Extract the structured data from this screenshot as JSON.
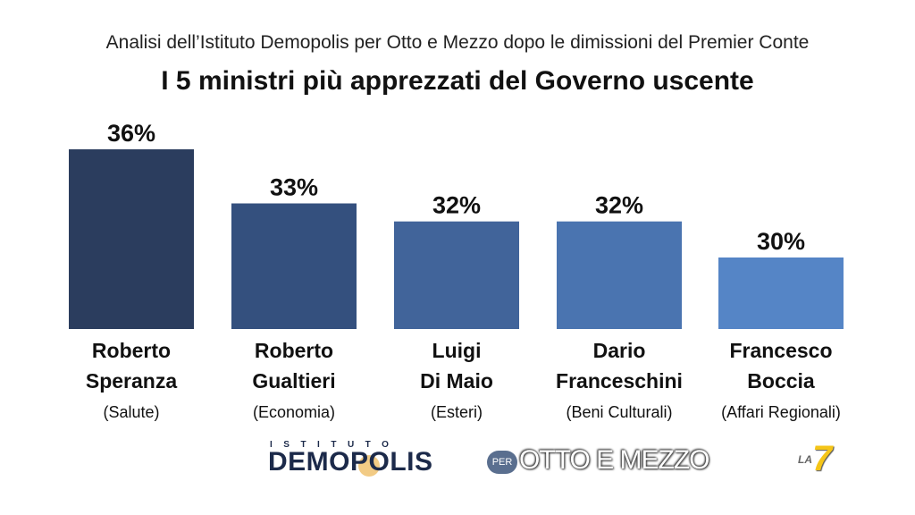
{
  "header": {
    "subtitle": "Analisi dell’Istituto Demopolis per Otto e Mezzo dopo le dimissioni del Premier Conte",
    "title": "I 5 ministri più apprezzati del Governo uscente"
  },
  "chart_data": {
    "type": "bar",
    "title": "I 5 ministri più apprezzati del Governo uscente",
    "categories": [
      {
        "name_line1": "Roberto",
        "name_line2": "Speranza",
        "role": "(Salute)"
      },
      {
        "name_line1": "Roberto",
        "name_line2": "Gualtieri",
        "role": "(Economia)"
      },
      {
        "name_line1": "Luigi",
        "name_line2": "Di Maio",
        "role": "(Esteri)"
      },
      {
        "name_line1": "Dario",
        "name_line2": "Franceschini",
        "role": "(Beni Culturali)"
      },
      {
        "name_line1": "Francesco",
        "name_line2": "Boccia",
        "role": "(Affari Regionali)"
      }
    ],
    "values": [
      36,
      33,
      32,
      32,
      30
    ],
    "value_labels": [
      "36%",
      "33%",
      "32%",
      "32%",
      "30%"
    ],
    "colors": [
      "#2b3d5e",
      "#34507e",
      "#41649a",
      "#4a74b0",
      "#5585c6"
    ],
    "grid": false,
    "legend": "none"
  },
  "footer": {
    "demopolis_small": "ISTITUTO",
    "demopolis_big": "DEMOPOLIS",
    "per": "PER",
    "otto": "OTTO E MEZZO",
    "la": "LA",
    "seven": "7"
  }
}
